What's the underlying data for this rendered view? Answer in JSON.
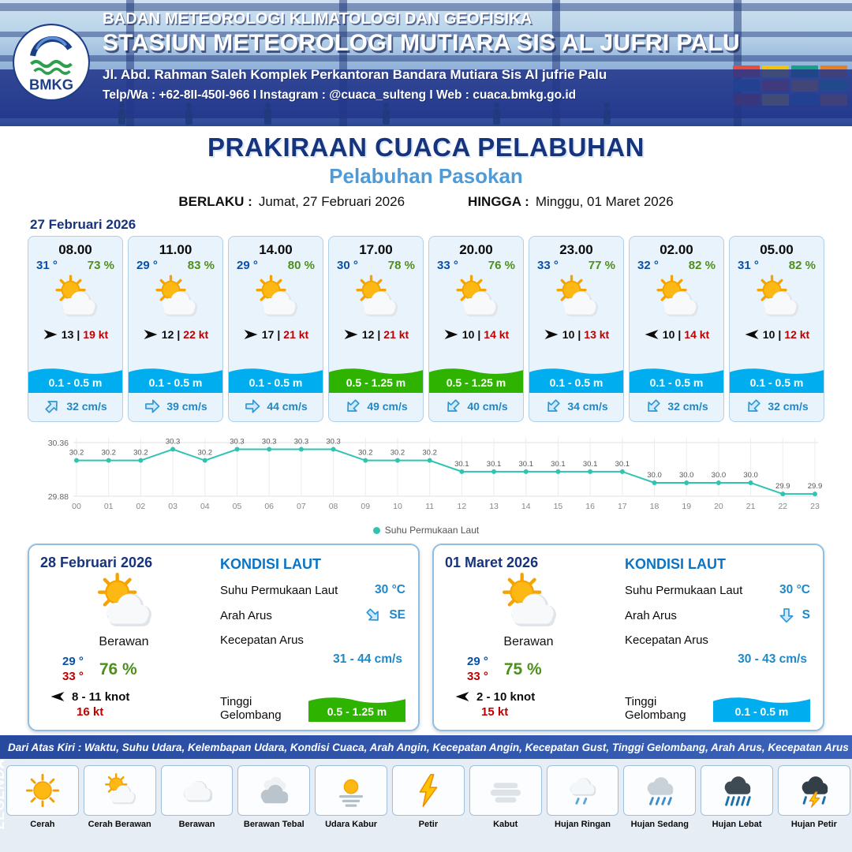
{
  "header": {
    "logo_text": "BMKG",
    "org": "BADAN METEOROLOGI KLIMATOLOGI DAN GEOFISIKA",
    "station": "STASIUN METEOROLOGI MUTIARA SIS AL JUFRI PALU",
    "address": "Jl. Abd. Rahman Saleh Komplek Perkantoran Bandara Mutiara Sis Al jufrie Palu",
    "contact": "Telp/Wa : +62-8II-450I-966  I  Instagram : @cuaca_sulteng  I  Web : cuaca.bmkg.go.id"
  },
  "title": "PRAKIRAAN CUACA PELABUHAN",
  "subtitle": "Pelabuhan Pasokan",
  "validity": {
    "berlaku_label": "BERLAKU :",
    "berlaku_value": "Jumat, 27 Februari 2026",
    "hingga_label": "HINGGA :",
    "hingga_value": "Minggu, 01 Maret 2026"
  },
  "forecast_date": "27 Februari 2026",
  "forecast": {
    "separator": "|",
    "cards": [
      {
        "time": "08.00",
        "temp": "31 °",
        "humidity": "73 %",
        "icon": "sun-cloud",
        "wind_dir_deg": 0,
        "wind_speed": "13",
        "wind_gust": "19 kt",
        "wave": "0.1 - 0.5 m",
        "wave_color": "blue",
        "current_dir_deg": -45,
        "current_speed": "32 cm/s"
      },
      {
        "time": "11.00",
        "temp": "29 °",
        "humidity": "83 %",
        "icon": "sun-cloud",
        "wind_dir_deg": 0,
        "wind_speed": "12",
        "wind_gust": "22 kt",
        "wave": "0.1 - 0.5 m",
        "wave_color": "blue",
        "current_dir_deg": 0,
        "current_speed": "39 cm/s"
      },
      {
        "time": "14.00",
        "temp": "29 °",
        "humidity": "80 %",
        "icon": "sun-cloud",
        "wind_dir_deg": 0,
        "wind_speed": "17",
        "wind_gust": "21 kt",
        "wave": "0.1 - 0.5 m",
        "wave_color": "blue",
        "current_dir_deg": 0,
        "current_speed": "44 cm/s"
      },
      {
        "time": "17.00",
        "temp": "30 °",
        "humidity": "78 %",
        "icon": "sun-cloud",
        "wind_dir_deg": 0,
        "wind_speed": "12",
        "wind_gust": "21 kt",
        "wave": "0.5 - 1.25 m",
        "wave_color": "green",
        "current_dir_deg": 135,
        "current_speed": "49 cm/s"
      },
      {
        "time": "20.00",
        "temp": "33 °",
        "humidity": "76 %",
        "icon": "sun-cloud",
        "wind_dir_deg": 0,
        "wind_speed": "10",
        "wind_gust": "14 kt",
        "wave": "0.5 - 1.25 m",
        "wave_color": "green",
        "current_dir_deg": 135,
        "current_speed": "40 cm/s"
      },
      {
        "time": "23.00",
        "temp": "33 °",
        "humidity": "77 %",
        "icon": "sun-cloud",
        "wind_dir_deg": 0,
        "wind_speed": "10",
        "wind_gust": "13 kt",
        "wave": "0.1 - 0.5 m",
        "wave_color": "blue",
        "current_dir_deg": 135,
        "current_speed": "34 cm/s"
      },
      {
        "time": "02.00",
        "temp": "32 °",
        "humidity": "82 %",
        "icon": "sun-cloud",
        "wind_dir_deg": 180,
        "wind_speed": "10",
        "wind_gust": "14 kt",
        "wave": "0.1 - 0.5 m",
        "wave_color": "blue",
        "current_dir_deg": 135,
        "current_speed": "32 cm/s"
      },
      {
        "time": "05.00",
        "temp": "31 °",
        "humidity": "82 %",
        "icon": "sun-cloud",
        "wind_dir_deg": 180,
        "wind_speed": "10",
        "wind_gust": "12 kt",
        "wave": "0.1 - 0.5 m",
        "wave_color": "blue",
        "current_dir_deg": 135,
        "current_speed": "32 cm/s"
      }
    ]
  },
  "chart_data": {
    "type": "line",
    "x": [
      "00",
      "01",
      "02",
      "03",
      "04",
      "05",
      "06",
      "07",
      "08",
      "09",
      "10",
      "11",
      "12",
      "13",
      "14",
      "15",
      "16",
      "17",
      "18",
      "19",
      "20",
      "21",
      "22",
      "23"
    ],
    "series": [
      {
        "name": "Suhu Permukaan Laut",
        "values": [
          30.2,
          30.2,
          30.2,
          30.3,
          30.2,
          30.3,
          30.3,
          30.3,
          30.3,
          30.2,
          30.2,
          30.2,
          30.1,
          30.1,
          30.1,
          30.1,
          30.1,
          30.1,
          30.0,
          30.0,
          30.0,
          30.0,
          29.9,
          29.9
        ]
      }
    ],
    "ylim": [
      29.88,
      30.36
    ],
    "y_axis_labels": [
      "30.36",
      "29.88"
    ],
    "legend_position": "bottom",
    "line_color": "#2fc4b2",
    "grid": true
  },
  "daily": [
    {
      "date": "28 Februari 2026",
      "icon": "sun-cloud",
      "condition": "Berawan",
      "temp_min": "29 °",
      "temp_max": "33 °",
      "humidity": "76 %",
      "wind_dir_deg": 180,
      "wind": "8 - 11 knot",
      "gust": "16 kt",
      "sea": {
        "heading": "KONDISI LAUT",
        "sst_label": "Suhu Permukaan Laut",
        "sst": "30 °C",
        "dir_label": "Arah Arus",
        "dir": "SE",
        "dir_deg": 45,
        "speed_label": "Kecepatan Arus",
        "speed": "31 - 44 cm/s",
        "wave_label": "Tinggi Gelombang",
        "wave": "0.5 - 1.25 m",
        "wave_color": "green"
      }
    },
    {
      "date": "01 Maret 2026",
      "icon": "sun-cloud",
      "condition": "Berawan",
      "temp_min": "29 °",
      "temp_max": "33 °",
      "humidity": "75 %",
      "wind_dir_deg": 180,
      "wind": "2 - 10 knot",
      "gust": "15 kt",
      "sea": {
        "heading": "KONDISI LAUT",
        "sst_label": "Suhu Permukaan Laut",
        "sst": "30 °C",
        "dir_label": "Arah Arus",
        "dir": "S",
        "dir_deg": 90,
        "speed_label": "Kecepatan Arus",
        "speed": "30 - 43 cm/s",
        "wave_label": "Tinggi Gelombang",
        "wave": "0.1 - 0.5 m",
        "wave_color": "blue"
      }
    }
  ],
  "legend": {
    "title": "LEGENDA",
    "caption": "Dari Atas Kiri : Waktu, Suhu Udara, Kelembapan Udara, Kondisi Cuaca, Arah Angin, Kecepatan Angin, Kecepatan Gust, Tinggi Gelombang, Arah Arus, Kecepatan Arus",
    "items": [
      {
        "label": "Cerah",
        "icon": "sun"
      },
      {
        "label": "Cerah Berawan",
        "icon": "sun-cloud"
      },
      {
        "label": "Berawan",
        "icon": "cloud"
      },
      {
        "label": "Berawan Tebal",
        "icon": "clouds"
      },
      {
        "label": "Udara Kabur",
        "icon": "haze"
      },
      {
        "label": "Petir",
        "icon": "lightning"
      },
      {
        "label": "Kabut",
        "icon": "fog"
      },
      {
        "label": "Hujan Ringan",
        "icon": "rain-light"
      },
      {
        "label": "Hujan Sedang",
        "icon": "rain-medium"
      },
      {
        "label": "Hujan Lebat",
        "icon": "rain-heavy"
      },
      {
        "label": "Hujan Petir",
        "icon": "storm"
      }
    ]
  },
  "colors": {
    "accent_navy": "#16337e",
    "subtitle_blue": "#4f9bd8",
    "temp_blue": "#0a50a8",
    "humidity_green": "#4e8f1c",
    "gust_red": "#c00000",
    "wave_blue": "#00aeef",
    "wave_green": "#2db300",
    "current_blue": "#1e88c9",
    "chart_teal": "#2fc4b2"
  }
}
